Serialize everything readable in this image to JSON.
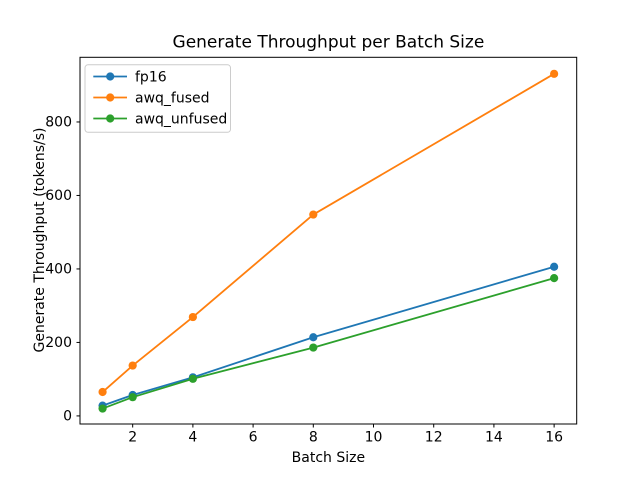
{
  "figure": {
    "title": "Generate Throughput per Batch Size",
    "xlabel": "Batch Size",
    "ylabel": "Generate Throughput (tokens/s)"
  },
  "chart_data": {
    "type": "line",
    "title": "Generate Throughput per Batch Size",
    "xlabel": "Batch Size",
    "ylabel": "Generate Throughput (tokens/s)",
    "x": [
      1,
      2,
      4,
      8,
      16
    ],
    "series": [
      {
        "name": "fp16",
        "color": "#1f77b4",
        "values": [
          28,
          57,
          105,
          214,
          406
        ]
      },
      {
        "name": "awq_fused",
        "color": "#ff7f0e",
        "values": [
          65,
          137,
          269,
          548,
          931
        ]
      },
      {
        "name": "awq_unfused",
        "color": "#2ca02c",
        "values": [
          20,
          51,
          101,
          186,
          375
        ]
      }
    ],
    "x_ticks": [
      2,
      4,
      6,
      8,
      10,
      12,
      14,
      16
    ],
    "y_ticks": [
      0,
      200,
      400,
      600,
      800
    ],
    "xlim": [
      0.25,
      16.75
    ],
    "ylim": [
      -22,
      976
    ],
    "legend_position": "upper left",
    "grid": false,
    "marker": "o",
    "axis_color": "#000000",
    "legend_border_color": "#cccccc",
    "background_color": "#ffffff"
  }
}
